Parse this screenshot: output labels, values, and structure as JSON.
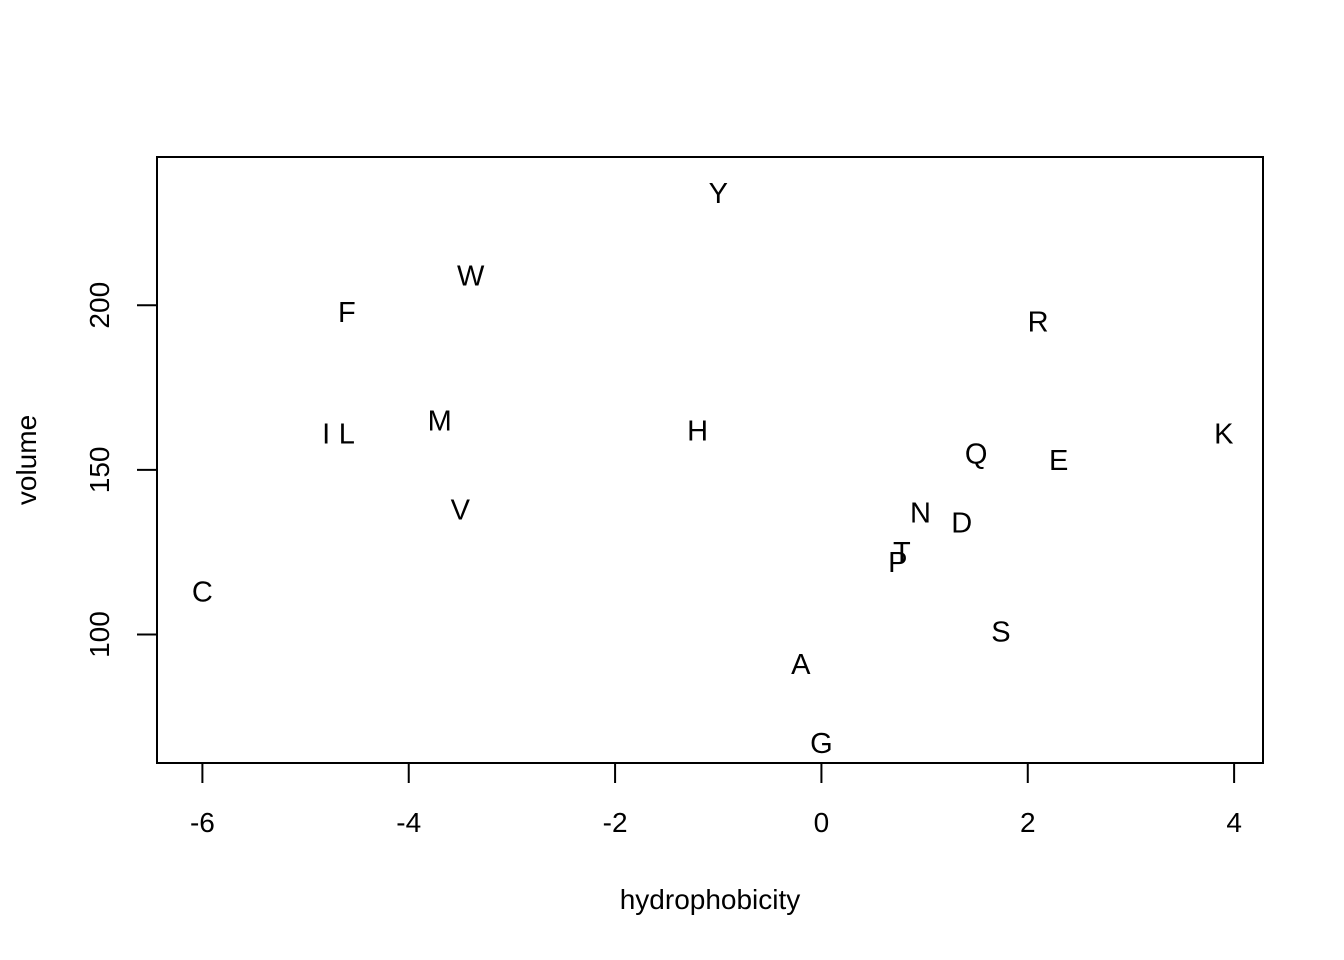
{
  "chart_data": {
    "type": "scatter",
    "title": "",
    "xlabel": "hydrophobicity",
    "ylabel": "volume",
    "xlim": [
      -6.44,
      4.28
    ],
    "ylim": [
      61,
      245
    ],
    "x_ticks": [
      -6,
      -4,
      -2,
      0,
      2,
      4
    ],
    "x_tick_labels": [
      "-6",
      "-4",
      "-2",
      "0",
      "2",
      "4"
    ],
    "y_ticks": [
      100,
      150,
      200
    ],
    "y_tick_labels": [
      "100",
      "150",
      "200"
    ],
    "grid": false,
    "legend": "none",
    "marker": "text labels",
    "points": [
      {
        "label": "Y",
        "x": -1.0,
        "y": 234
      },
      {
        "label": "W",
        "x": -3.4,
        "y": 209
      },
      {
        "label": "F",
        "x": -4.6,
        "y": 198
      },
      {
        "label": "R",
        "x": 2.1,
        "y": 195
      },
      {
        "label": "M",
        "x": -3.7,
        "y": 165
      },
      {
        "label": "I",
        "x": -4.8,
        "y": 161
      },
      {
        "label": "L",
        "x": -4.6,
        "y": 161
      },
      {
        "label": "H",
        "x": -1.2,
        "y": 162
      },
      {
        "label": "K",
        "x": 3.9,
        "y": 161
      },
      {
        "label": "Q",
        "x": 1.5,
        "y": 155
      },
      {
        "label": "E",
        "x": 2.3,
        "y": 153
      },
      {
        "label": "V",
        "x": -3.5,
        "y": 138
      },
      {
        "label": "N",
        "x": 0.96,
        "y": 137
      },
      {
        "label": "D",
        "x": 1.36,
        "y": 134
      },
      {
        "label": "T",
        "x": 0.78,
        "y": 125
      },
      {
        "label": "P",
        "x": 0.74,
        "y": 122
      },
      {
        "label": "C",
        "x": -6.0,
        "y": 113
      },
      {
        "label": "S",
        "x": 1.74,
        "y": 101
      },
      {
        "label": "A",
        "x": -0.2,
        "y": 91
      },
      {
        "label": "G",
        "x": 0.0,
        "y": 67
      }
    ]
  }
}
